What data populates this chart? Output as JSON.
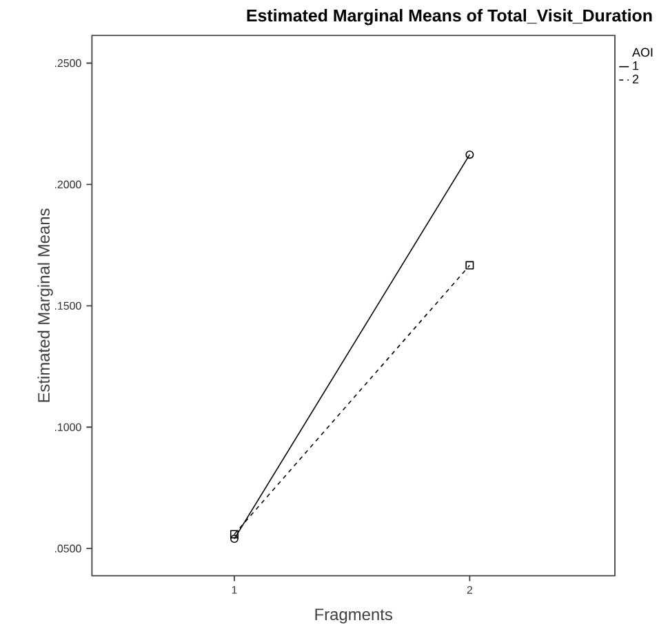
{
  "chart_data": {
    "type": "line",
    "title": "Estimated Marginal Means of Total_Visit_Duration",
    "xlabel": "Fragments",
    "ylabel": "Estimated Marginal Means",
    "legend_title": "AOI",
    "legend": "top right",
    "categories": [
      "1",
      "2"
    ],
    "ylim": [
      0.0388,
      0.2614
    ],
    "yticks": [
      {
        "value": 0.05,
        "label": ".0500"
      },
      {
        "value": 0.1,
        "label": ".1000"
      },
      {
        "value": 0.15,
        "label": ".1500"
      },
      {
        "value": 0.2,
        "label": ".2000"
      },
      {
        "value": 0.25,
        "label": ".2500"
      }
    ],
    "series": [
      {
        "name": "1",
        "color": "#000000",
        "values": [
          0.054,
          0.2123
        ],
        "marker": "circle",
        "line_style": "solid"
      },
      {
        "name": "2",
        "color": "#000000",
        "values": [
          0.0559,
          0.1667
        ],
        "marker": "square",
        "line_style": "dashed"
      }
    ]
  }
}
